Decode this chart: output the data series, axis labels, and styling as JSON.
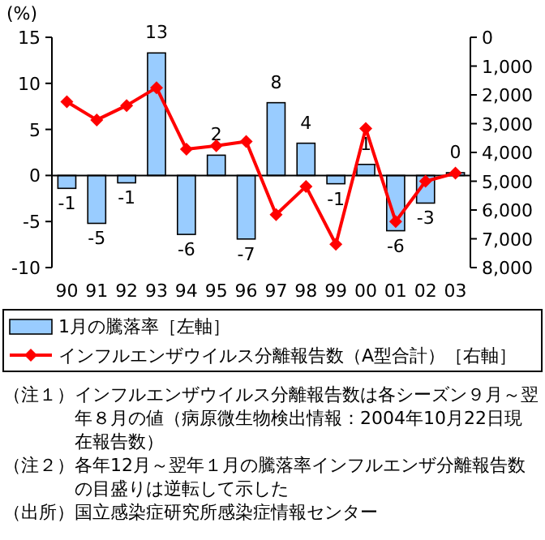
{
  "chart_data": {
    "type": "bar",
    "ylabel": "(%)",
    "categories": [
      "90",
      "91",
      "92",
      "93",
      "94",
      "95",
      "96",
      "97",
      "98",
      "99",
      "00",
      "01",
      "02",
      "03"
    ],
    "ylim": [
      -10,
      15
    ],
    "yticks": [
      -10,
      -5,
      0,
      5,
      10,
      15
    ],
    "y2lim": [
      8000,
      0
    ],
    "y2ticks": [
      {
        "value": 0,
        "label": "0"
      },
      {
        "value": 1000,
        "label": "1,000"
      },
      {
        "value": 2000,
        "label": "2,000"
      },
      {
        "value": 3000,
        "label": "3,000"
      },
      {
        "value": 4000,
        "label": "4,000"
      },
      {
        "value": 5000,
        "label": "5,000"
      },
      {
        "value": 6000,
        "label": "6,000"
      },
      {
        "value": 7000,
        "label": "7,000"
      },
      {
        "value": 8000,
        "label": "8,000"
      }
    ],
    "series": [
      {
        "name": "1月の騰落率［左軸］",
        "color": "#99ccff",
        "values": [
          -1.4,
          -5.2,
          -0.8,
          13.3,
          -6.4,
          2.2,
          -6.9,
          7.9,
          3.5,
          -0.9,
          1.2,
          -6.0,
          -3.0,
          0.3
        ],
        "value_labels": [
          "-1",
          "-5",
          "-1",
          "13",
          "-6",
          "2",
          "-7",
          "8",
          "4",
          "-1",
          "1",
          "-6",
          "-3",
          "0"
        ]
      },
      {
        "name": "インフルエンザウイルス分離報告数（A型合計）［右軸］",
        "type": "line",
        "axis": "y2",
        "color": "#ff0000",
        "marker": "diamond",
        "values": [
          2240,
          2870,
          2370,
          1750,
          3890,
          3770,
          3620,
          6160,
          5180,
          7190,
          3170,
          6400,
          5000,
          4720
        ]
      }
    ],
    "legend": "bottom",
    "annotations": [
      "（注１）インフルエンザウイルス分離報告数は各シーズン９月～翌年８月の値（病原微生物検出情報：2004年10月22日現在報告数）",
      "（注２）各年12月～翌年１月の騰落率インフルエンザ分離報告数の目盛りは逆転して示した",
      "（出所）国立感染症研究所感染症情報センター"
    ]
  }
}
